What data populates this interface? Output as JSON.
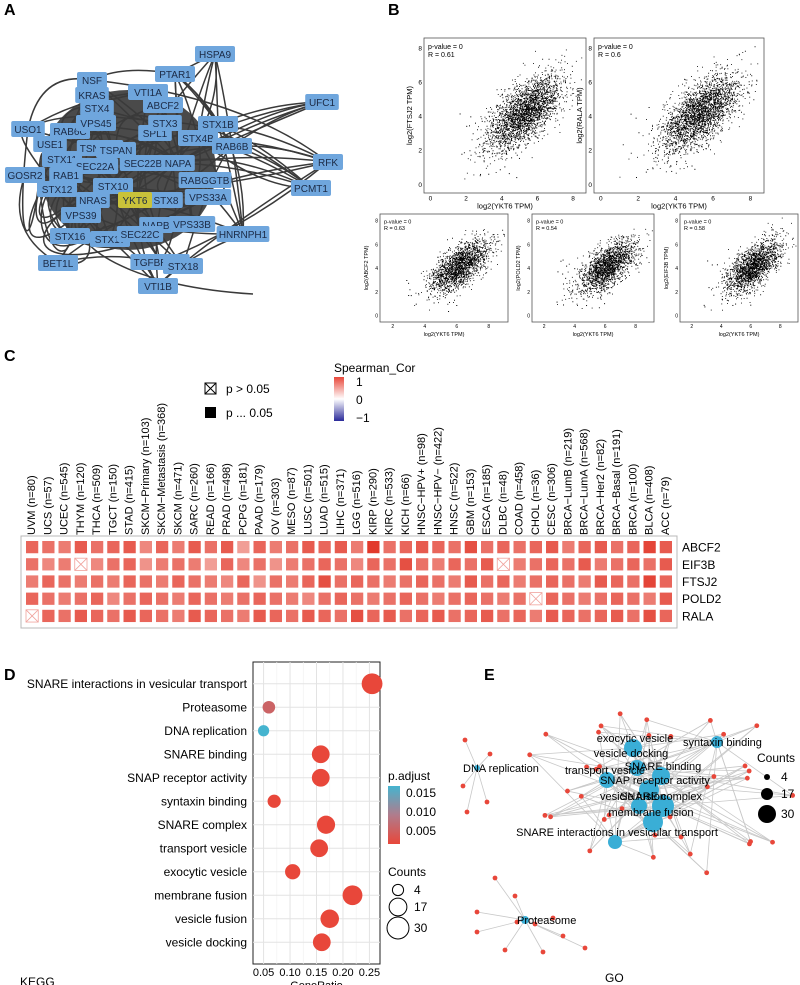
{
  "panels": {
    "A": "A",
    "B": "B",
    "C": "C",
    "D": "D",
    "E": "E"
  },
  "panelA": {
    "hub": "YKT6",
    "nodes": [
      "HSPA9",
      "PTAR1",
      "NSF",
      "KRAS",
      "STX4",
      "VTI1A",
      "ABCF2",
      "UFC1",
      "USO1",
      "RAB6C",
      "USE1",
      "VPS45",
      "TSNARE",
      "SPL1",
      "STX3",
      "STX1B",
      "STX4B",
      "STX11",
      "SEC22A",
      "SEC22B",
      "NAPA",
      "RAB6B",
      "RFK",
      "GOSR2",
      "RAB1",
      "STX12",
      "STX10",
      "RABGGTB",
      "PCMT1",
      "NRAS",
      "VPS33A",
      "VPS39",
      "STX8",
      "STX16",
      "NAPB",
      "VPS33B",
      "HNRNPH1",
      "STX17",
      "SEC22C",
      "BET1L",
      "TGFBRAP1",
      "STX18",
      "VTI1B",
      "TSPAN"
    ]
  },
  "panelB": {
    "plots": [
      {
        "ylabel": "log2(FTSJ2 TPM)",
        "xlabel": "log2(YKT6 TPM)",
        "p": "p-value = 0",
        "r": "R = 0.61"
      },
      {
        "ylabel": "log2(RALA TPM)",
        "xlabel": "log2(YKT6 TPM)",
        "p": "p-value = 0",
        "r": "R = 0.6"
      },
      {
        "ylabel": "log2(ABCF2 TPM)",
        "xlabel": "log2(YKT6 TPM)",
        "p": "p-value = 0",
        "r": "R = 0.63"
      },
      {
        "ylabel": "log2(POLD2 TPM)",
        "xlabel": "log2(YKT6 TPM)",
        "p": "p-value = 0",
        "r": "R = 0.54"
      },
      {
        "ylabel": "log2(EIF3B TPM)",
        "xlabel": "log2(YKT6 TPM)",
        "p": "p-value = 0",
        "r": "R = 0.58"
      }
    ],
    "xticks_top": [
      "0",
      "2",
      "4",
      "6",
      "8"
    ],
    "yticks_top": [
      "0",
      "2",
      "4",
      "6",
      "8"
    ],
    "xticks_small": [
      "2",
      "4",
      "6",
      "8"
    ],
    "yticks_small": [
      "0",
      "2",
      "4",
      "6",
      "8"
    ]
  },
  "panelC": {
    "legend_title": "Spearman_Cor",
    "legend_ticks": [
      "1",
      "0",
      "−1"
    ],
    "sig_labels": [
      "p > 0.05",
      "p ... 0.05"
    ],
    "columns": [
      "UVM (n=80)",
      "UCS (n=57)",
      "UCEC (n=545)",
      "THYM (n=120)",
      "THCA (n=509)",
      "TGCT (n=150)",
      "STAD (n=415)",
      "SKCM−Primary (n=103)",
      "SKCM−Metastasis (n=368)",
      "SKCM (n=471)",
      "SARC (n=260)",
      "READ (n=166)",
      "PRAD (n=498)",
      "PCPG (n=181)",
      "PAAD (n=179)",
      "OV (n=303)",
      "MESO (n=87)",
      "LUSC (n=501)",
      "LUAD (n=515)",
      "LIHC (n=371)",
      "LGG (n=516)",
      "KIRP (n=290)",
      "KIRC (n=533)",
      "KICH (n=66)",
      "HNSC−HPV+ (n=98)",
      "HNSC−HPV− (n=422)",
      "HNSC (n=522)",
      "GBM (n=153)",
      "ESCA (n=185)",
      "DLBC (n=48)",
      "COAD (n=458)",
      "CHOL (n=36)",
      "CESC (n=306)",
      "BRCA−LumB (n=219)",
      "BRCA−LumA (n=568)",
      "BRCA−Her2 (n=82)",
      "BRCA−Basal (n=191)",
      "BRCA (n=100)",
      "BLCA (n=408)",
      "ACC (n=79)"
    ],
    "rows": [
      "ABCF2",
      "EIF3B",
      "FTSJ2",
      "POLD2",
      "RALA"
    ],
    "values": [
      [
        0.55,
        0.5,
        0.45,
        0.6,
        0.5,
        0.55,
        0.6,
        0.4,
        0.55,
        0.45,
        0.6,
        0.5,
        0.6,
        0.3,
        0.55,
        0.45,
        0.5,
        0.6,
        0.55,
        0.6,
        0.45,
        0.75,
        0.5,
        0.55,
        0.6,
        0.55,
        0.5,
        0.65,
        0.5,
        0.55,
        0.5,
        0.55,
        0.6,
        0.45,
        0.55,
        0.6,
        0.5,
        0.55,
        0.7,
        0.6
      ],
      [
        0.5,
        0.4,
        0.45,
        0.0,
        0.4,
        0.5,
        0.55,
        0.35,
        0.45,
        0.5,
        0.45,
        0.3,
        0.55,
        0.4,
        0.5,
        0.35,
        0.45,
        0.5,
        0.55,
        0.5,
        0.4,
        0.55,
        0.5,
        0.65,
        0.5,
        0.45,
        0.55,
        0.5,
        0.6,
        0.0,
        0.45,
        0.5,
        0.55,
        0.5,
        0.6,
        0.45,
        0.5,
        0.55,
        0.5,
        0.6
      ],
      [
        0.45,
        0.55,
        0.5,
        0.45,
        0.5,
        0.45,
        0.55,
        0.5,
        0.45,
        0.55,
        0.5,
        0.45,
        0.4,
        0.55,
        0.35,
        0.5,
        0.45,
        0.55,
        0.65,
        0.5,
        0.55,
        0.5,
        0.45,
        0.5,
        0.55,
        0.5,
        0.45,
        0.6,
        0.5,
        0.55,
        0.45,
        0.5,
        0.55,
        0.5,
        0.45,
        0.6,
        0.55,
        0.5,
        0.7,
        0.55
      ],
      [
        0.55,
        0.5,
        0.45,
        0.5,
        0.55,
        0.4,
        0.5,
        0.55,
        0.5,
        0.45,
        0.55,
        0.5,
        0.45,
        0.5,
        0.55,
        0.5,
        0.45,
        0.4,
        0.5,
        0.55,
        0.5,
        0.45,
        0.5,
        0.55,
        0.5,
        0.45,
        0.5,
        0.55,
        0.5,
        0.45,
        0.5,
        0.0,
        0.55,
        0.5,
        0.45,
        0.5,
        0.55,
        0.5,
        0.45,
        0.6
      ],
      [
        0.0,
        0.55,
        0.5,
        0.6,
        0.55,
        0.5,
        0.6,
        0.55,
        0.5,
        0.45,
        0.6,
        0.55,
        0.5,
        0.45,
        0.6,
        0.55,
        0.5,
        0.6,
        0.55,
        0.5,
        0.65,
        0.55,
        0.6,
        0.5,
        0.55,
        0.6,
        0.5,
        0.55,
        0.6,
        0.5,
        0.55,
        0.45,
        0.6,
        0.55,
        0.5,
        0.55,
        0.6,
        0.5,
        0.65,
        0.55
      ]
    ]
  },
  "panelD": {
    "categories": [
      "SNARE interactions in vesicular transport",
      "Proteasome",
      "DNA replication",
      "SNARE binding",
      "SNAP receptor activity",
      "syntaxin binding",
      "SNARE complex",
      "transport vesicle",
      "exocytic vesicle",
      "membrane fusion",
      "vesicle fusion",
      "vesicle docking"
    ],
    "x": [
      0.255,
      0.06,
      0.05,
      0.158,
      0.158,
      0.07,
      0.168,
      0.155,
      0.105,
      0.218,
      0.175,
      0.16
    ],
    "padj": [
      0.001,
      0.009,
      0.016,
      0.001,
      0.001,
      0.001,
      0.001,
      0.001,
      0.001,
      0.001,
      0.001,
      0.001
    ],
    "counts": [
      26,
      6,
      4,
      17,
      17,
      7,
      18,
      17,
      11,
      23,
      19,
      17
    ],
    "xlabel": "GeneRatio",
    "xticks": [
      "0.05",
      "0.10",
      "0.15",
      "0.20",
      "0.25"
    ],
    "source_label": "KEGG",
    "legend_padj_title": "p.adjust",
    "legend_padj_ticks": [
      "0.015",
      "0.010",
      "0.005"
    ],
    "legend_counts_title": "Counts",
    "legend_counts_ticks": [
      "4",
      "17",
      "30"
    ]
  },
  "panelE": {
    "labels": [
      "exocytic vesicle",
      "vesicle docking",
      "syntaxin binding",
      "transport vesicle",
      "SNARE binding",
      "SNAP receptor activity",
      "vesicle fusion",
      "SNARE complex",
      "membrane fusion",
      "SNARE interactions in vesicular transport",
      "DNA replication",
      "Proteasome"
    ],
    "source_label": "GO",
    "legend_counts_title": "Counts",
    "legend_counts_ticks": [
      "4",
      "17",
      "30"
    ]
  },
  "colors": {
    "node_blue": "#6fa6dd",
    "hub_yellow": "#c9c23a",
    "heat_red": "#e8473a",
    "dot_red": "#e8473a",
    "dot_blue": "#45b4cf",
    "go_cyan": "#3aaed6"
  }
}
